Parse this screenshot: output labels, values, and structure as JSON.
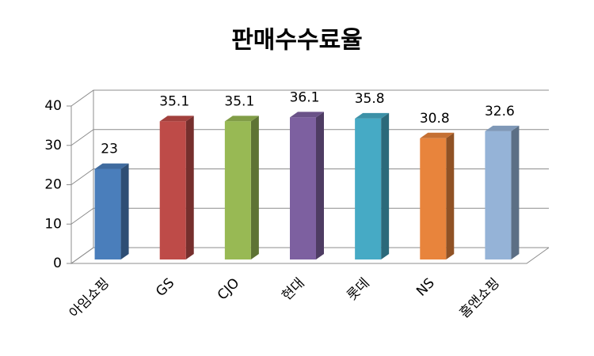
{
  "chart_data": {
    "type": "bar3d",
    "title": "판매수수료율",
    "categories": [
      "아임쇼핑",
      "GS",
      "CJO",
      "현대",
      "롯데",
      "NS",
      "홈앤쇼핑"
    ],
    "values": [
      23,
      35.1,
      35.1,
      36.1,
      35.8,
      30.8,
      32.6
    ],
    "colors": [
      "#4a7ebb",
      "#be4b48",
      "#98b954",
      "#7d60a0",
      "#46aac5",
      "#e8843c",
      "#95b3d7"
    ],
    "ylim": [
      0,
      40
    ],
    "yticks": [
      0,
      10,
      20,
      30,
      40
    ],
    "grid": true
  }
}
